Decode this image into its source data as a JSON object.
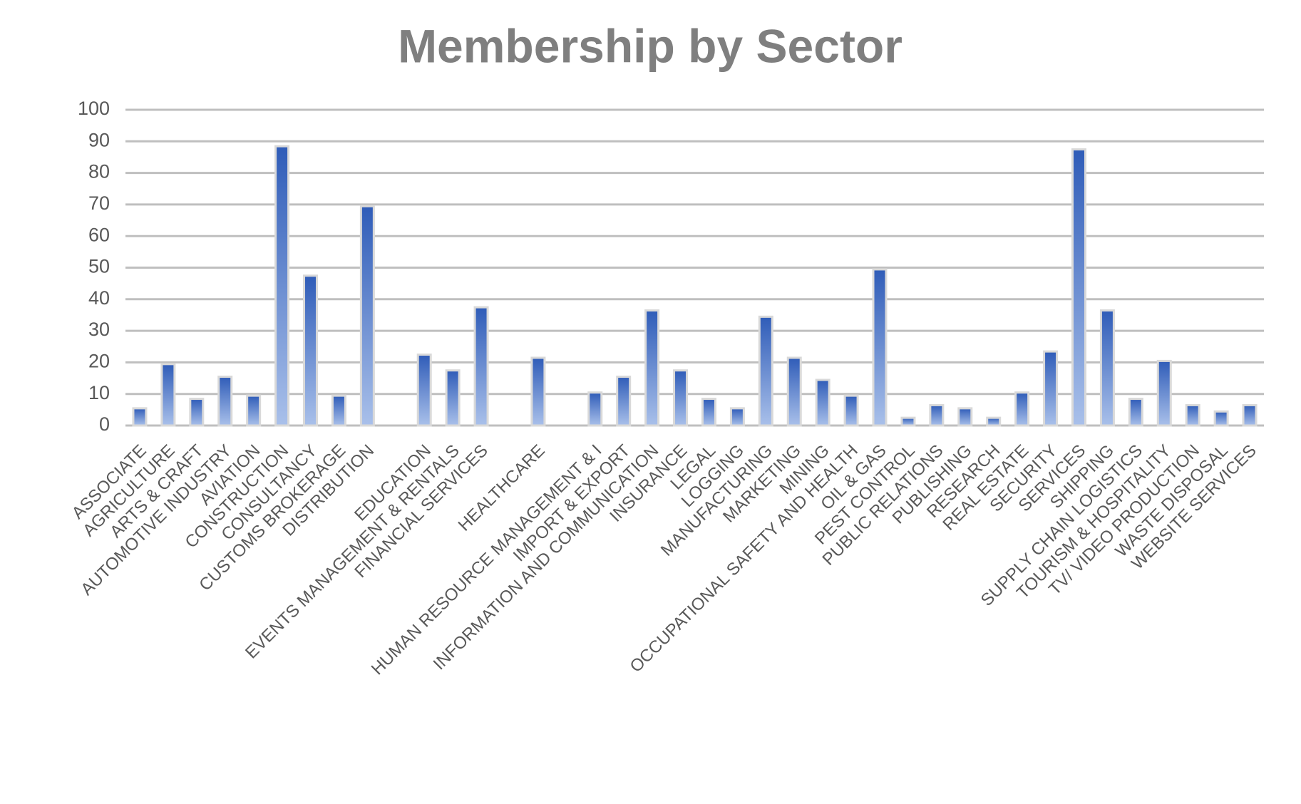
{
  "chart_data": {
    "type": "bar",
    "title": "Membership by Sector",
    "categories": [
      "ASSOCIATE",
      "AGRICULTURE",
      "ARTS & CRAFT",
      "AUTOMOTIVE INDUSTRY",
      "AVIATION",
      "CONSTRUCTION",
      "CONSULTANCY",
      "CUSTOMS BROKERAGE",
      "DISTRIBUTION",
      null,
      "EDUCATION",
      "EVENTS MANAGEMENT & RENTALS",
      "FINANCIAL SERVICES",
      null,
      "HEALTHCARE",
      null,
      "HUMAN RESOURCE MANAGEMENT & I",
      "IMPORT & EXPORT",
      "INFORMATION AND COMMUNICATION",
      "INSURANCE",
      "LEGAL",
      "LOGGING",
      "MANUFACTURING",
      "MARKETING",
      "MINING",
      "OCCUPATIONAL SAFETY AND HEALTH",
      "OIL & GAS",
      "PEST CONTROL",
      "PUBLIC RELATIONS",
      "PUBLISHING",
      "RESEARCH",
      "REAL ESTATE",
      "SECURITY",
      "SERVICES",
      "SHIPPING",
      "SUPPLY CHAIN LOGISTICS",
      "TOURISM & HOSPITALITY",
      "TV/ VIDEO PRODUCTION",
      "WASTE DISPOSAL",
      "WEBSITE SERVICES"
    ],
    "values": [
      5,
      19,
      8,
      15,
      9,
      88,
      47,
      9,
      69,
      null,
      22,
      17,
      37,
      null,
      21,
      null,
      10,
      15,
      36,
      17,
      8,
      5,
      34,
      21,
      14,
      9,
      49,
      2,
      6,
      5,
      2,
      10,
      23,
      87,
      36,
      8,
      20,
      6,
      4,
      6
    ],
    "color": "#4472c4",
    "ylim": [
      0,
      100
    ],
    "yticks": [
      0,
      10,
      20,
      30,
      40,
      50,
      60,
      70,
      80,
      90,
      100
    ],
    "grid": true
  }
}
